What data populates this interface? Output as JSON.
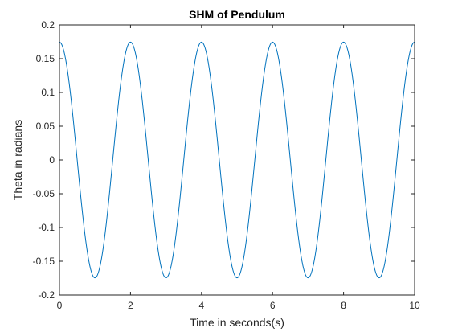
{
  "chart_data": {
    "type": "line",
    "title": "SHM of Pendulum",
    "xlabel": "Time in seconds(s)",
    "ylabel": "Theta in radians",
    "xlim": [
      0,
      10
    ],
    "ylim": [
      -0.2,
      0.2
    ],
    "x_ticks": [
      "0",
      "2",
      "4",
      "6",
      "8",
      "10"
    ],
    "y_ticks": [
      "-0.2",
      "-0.15",
      "-0.1",
      "-0.05",
      "0",
      "0.05",
      "0.1",
      "0.15",
      "0.2"
    ],
    "grid": false,
    "series": [
      {
        "color": "#0072bd",
        "function": "theta(t) = A * cos(2*pi*t/T)",
        "amplitude": 0.1745,
        "period": 2.0,
        "x_range": [
          0,
          10
        ]
      }
    ]
  }
}
